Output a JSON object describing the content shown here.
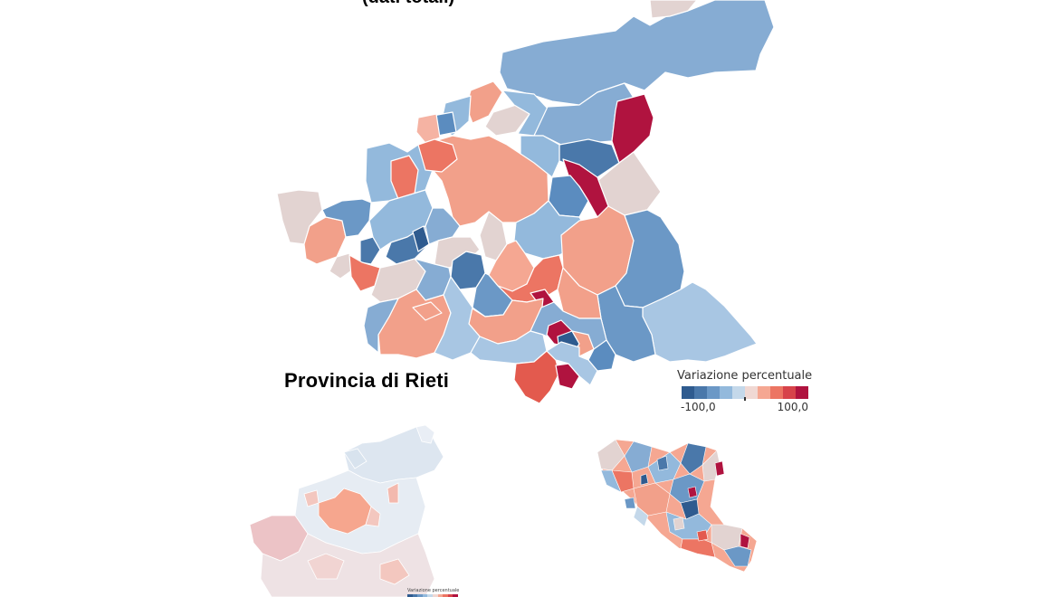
{
  "main_map": {
    "title_fragment": "(dati totali)",
    "region_label": "Provincia di Rieti"
  },
  "legend": {
    "title": "Variazione percentuale",
    "min_label": "-100,0",
    "max_label": "100,0",
    "colors": [
      "#2f5b8f",
      "#4a78aa",
      "#6b98c6",
      "#93b9dc",
      "#c4d8ea",
      "#f0d8d3",
      "#f5a792",
      "#ec7563",
      "#d7434a",
      "#b0133f"
    ]
  },
  "mini_legend": {
    "title": "Variazione percentuale"
  },
  "palette": {
    "strong_blue": "#2f5b8f",
    "blue": "#5b8cbf",
    "light_blue": "#93b9dc",
    "pale_blue": "#c4d8ea",
    "neutral": "#e2d3d1",
    "salmon": "#f5a792",
    "coral": "#ec7563",
    "red": "#d7434a",
    "crimson": "#b0133f",
    "faded_blue": "#dde6f0",
    "faded_red": "#f3c7bf"
  }
}
